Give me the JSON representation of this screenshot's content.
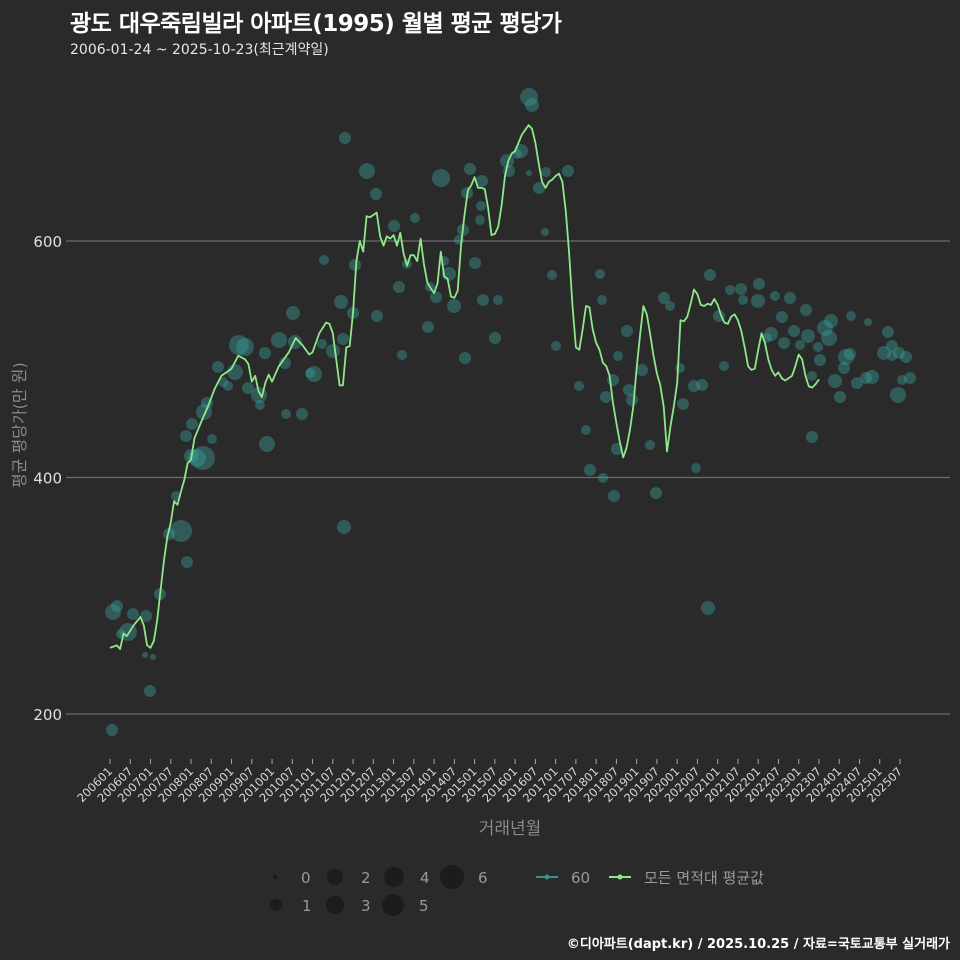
{
  "header": {
    "title": "광도 대우죽림빌라 아파트(1995) 월별 평균 평당가",
    "subtitle": "2006-01-24 ~ 2025-10-23(최근계약일)"
  },
  "axes": {
    "ylabel": "평균 평당가(만 원)",
    "xlabel": "거래년월"
  },
  "legend": {
    "size_items": [
      "0",
      "1",
      "2",
      "3",
      "4",
      "5",
      "6"
    ],
    "series_items": [
      {
        "label": "60",
        "color": "#3a8f8f"
      },
      {
        "label": "모든 면적대 평균값",
        "color": "#8ee88a"
      }
    ]
  },
  "footer": {
    "credit": "©디아파트(dapt.kr) / 2025.10.25 / 자료=국토교통부 실거래가"
  },
  "colors": {
    "background": "#2a2a2b",
    "grid": "#6a6a6a",
    "bubble": "#3aa5a0",
    "line": "#8ee88a"
  },
  "chart_data": {
    "type": "line",
    "title": "광도 대우죽림빌라 아파트(1995) 월별 평균 평당가",
    "subtitle": "2006-01-24 ~ 2025-10-23(최근계약일)",
    "xlabel": "거래년월",
    "ylabel": "평균 평당가(만 원)",
    "ylim": [
      160,
      720
    ],
    "yticks": [
      200,
      400,
      600
    ],
    "grid": true,
    "legend_position": "bottom",
    "categories": [
      "200601",
      "200607",
      "200701",
      "200707",
      "200801",
      "200807",
      "200901",
      "200907",
      "201001",
      "201007",
      "201101",
      "201107",
      "201201",
      "201207",
      "201301",
      "201307",
      "201401",
      "201407",
      "201501",
      "201507",
      "201601",
      "201607",
      "201701",
      "201707",
      "201801",
      "201807",
      "201901",
      "201907",
      "202001",
      "202007",
      "202101",
      "202107",
      "202201",
      "202207",
      "202301",
      "202307",
      "202401",
      "202407",
      "202501",
      "202507"
    ],
    "series": [
      {
        "name": "모든 면적대 평균값",
        "points": [
          [
            "200601",
            256
          ],
          [
            "200603",
            258
          ],
          [
            "200604",
            255
          ],
          [
            "200605",
            268
          ],
          [
            "200606",
            266
          ],
          [
            "200608",
            275
          ],
          [
            "200610",
            282
          ],
          [
            "200611",
            275
          ],
          [
            "200612",
            258
          ],
          [
            "200701",
            256
          ],
          [
            "200702",
            262
          ],
          [
            "200703",
            280
          ],
          [
            "200704",
            305
          ],
          [
            "200705",
            330
          ],
          [
            "200706",
            350
          ],
          [
            "200707",
            362
          ],
          [
            "200708",
            380
          ],
          [
            "200709",
            377
          ],
          [
            "200710",
            388
          ],
          [
            "200711",
            398
          ],
          [
            "200712",
            412
          ],
          [
            "200801",
            415
          ],
          [
            "200802",
            433
          ],
          [
            "200803",
            440
          ],
          [
            "200804",
            447
          ],
          [
            "200806",
            460
          ],
          [
            "200808",
            475
          ],
          [
            "200810",
            486
          ],
          [
            "200812",
            490
          ],
          [
            "200901",
            492
          ],
          [
            "200903",
            503
          ],
          [
            "200905",
            500
          ],
          [
            "200906",
            496
          ],
          [
            "200907",
            481
          ],
          [
            "200908",
            486
          ],
          [
            "200909",
            473
          ],
          [
            "200910",
            468
          ],
          [
            "200911",
            480
          ],
          [
            "200912",
            487
          ],
          [
            "201001",
            481
          ],
          [
            "201003",
            494
          ],
          [
            "201006",
            506
          ],
          [
            "201008",
            518
          ],
          [
            "201010",
            512
          ],
          [
            "201012",
            504
          ],
          [
            "201101",
            506
          ],
          [
            "201103",
            522
          ],
          [
            "201105",
            531
          ],
          [
            "201106",
            530
          ],
          [
            "201107",
            522
          ],
          [
            "201108",
            500
          ],
          [
            "201109",
            478
          ],
          [
            "201110",
            478
          ],
          [
            "201111",
            510
          ],
          [
            "201112",
            511
          ],
          [
            "201201",
            540
          ],
          [
            "201202",
            583
          ],
          [
            "201203",
            600
          ],
          [
            "201204",
            591
          ],
          [
            "201205",
            621
          ],
          [
            "201206",
            620
          ],
          [
            "201207",
            622
          ],
          [
            "201208",
            624
          ],
          [
            "201209",
            604
          ],
          [
            "201210",
            596
          ],
          [
            "201211",
            604
          ],
          [
            "201212",
            602
          ],
          [
            "201301",
            605
          ],
          [
            "201302",
            596
          ],
          [
            "201303",
            607
          ],
          [
            "201304",
            589
          ],
          [
            "201305",
            579
          ],
          [
            "201306",
            588
          ],
          [
            "201307",
            588
          ],
          [
            "201308",
            583
          ],
          [
            "201309",
            602
          ],
          [
            "201310",
            580
          ],
          [
            "201311",
            565
          ],
          [
            "201312",
            560
          ],
          [
            "201401",
            556
          ],
          [
            "201402",
            564
          ],
          [
            "201403",
            591
          ],
          [
            "201404",
            570
          ],
          [
            "201405",
            568
          ],
          [
            "201406",
            553
          ],
          [
            "201407",
            552
          ],
          [
            "201408",
            558
          ],
          [
            "201409",
            597
          ],
          [
            "201410",
            622
          ],
          [
            "201411",
            643
          ],
          [
            "201412",
            647
          ],
          [
            "201501",
            654
          ],
          [
            "201502",
            645
          ],
          [
            "201503",
            645
          ],
          [
            "201504",
            644
          ],
          [
            "201505",
            628
          ],
          [
            "201506",
            605
          ],
          [
            "201507",
            606
          ],
          [
            "201508",
            612
          ],
          [
            "201509",
            630
          ],
          [
            "201510",
            655
          ],
          [
            "201511",
            668
          ],
          [
            "201512",
            674
          ],
          [
            "201601",
            676
          ],
          [
            "201603",
            690
          ],
          [
            "201605",
            698
          ],
          [
            "201606",
            695
          ],
          [
            "201607",
            683
          ],
          [
            "201608",
            665
          ],
          [
            "201609",
            650
          ],
          [
            "201610",
            645
          ],
          [
            "201611",
            650
          ],
          [
            "201612",
            652
          ],
          [
            "201701",
            655
          ],
          [
            "201702",
            657
          ],
          [
            "201703",
            650
          ],
          [
            "201704",
            625
          ],
          [
            "201705",
            590
          ],
          [
            "201706",
            545
          ],
          [
            "201707",
            510
          ],
          [
            "201708",
            508
          ],
          [
            "201709",
            525
          ],
          [
            "201710",
            545
          ],
          [
            "201711",
            544
          ],
          [
            "201712",
            525
          ],
          [
            "201801",
            514
          ],
          [
            "201802",
            508
          ],
          [
            "201803",
            497
          ],
          [
            "201804",
            494
          ],
          [
            "201805",
            486
          ],
          [
            "201806",
            463
          ],
          [
            "201807",
            446
          ],
          [
            "201808",
            430
          ],
          [
            "201809",
            417
          ],
          [
            "201810",
            425
          ],
          [
            "201811",
            440
          ],
          [
            "201812",
            460
          ],
          [
            "201901",
            493
          ],
          [
            "201902",
            520
          ],
          [
            "201903",
            545
          ],
          [
            "201904",
            538
          ],
          [
            "201905",
            521
          ],
          [
            "201906",
            503
          ],
          [
            "201907",
            488
          ],
          [
            "201908",
            478
          ],
          [
            "201909",
            460
          ],
          [
            "201910",
            422
          ],
          [
            "201911",
            443
          ],
          [
            "201912",
            460
          ],
          [
            "202001",
            480
          ],
          [
            "202002",
            533
          ],
          [
            "202003",
            532
          ],
          [
            "202004",
            536
          ],
          [
            "202005",
            547
          ],
          [
            "202006",
            559
          ],
          [
            "202007",
            555
          ],
          [
            "202008",
            546
          ],
          [
            "202009",
            545
          ],
          [
            "202010",
            547
          ],
          [
            "202011",
            546
          ],
          [
            "202012",
            551
          ],
          [
            "202101",
            546
          ],
          [
            "202102",
            537
          ],
          [
            "202103",
            531
          ],
          [
            "202104",
            530
          ],
          [
            "202105",
            536
          ],
          [
            "202106",
            538
          ],
          [
            "202107",
            533
          ],
          [
            "202108",
            524
          ],
          [
            "202109",
            510
          ],
          [
            "202110",
            494
          ],
          [
            "202111",
            491
          ],
          [
            "202112",
            492
          ],
          [
            "202201",
            508
          ],
          [
            "202202",
            522
          ],
          [
            "202203",
            514
          ],
          [
            "202204",
            500
          ],
          [
            "202205",
            491
          ],
          [
            "202206",
            486
          ],
          [
            "202207",
            489
          ],
          [
            "202208",
            484
          ],
          [
            "202209",
            482
          ],
          [
            "202210",
            484
          ],
          [
            "202211",
            486
          ],
          [
            "202212",
            494
          ],
          [
            "202301",
            504
          ],
          [
            "202302",
            500
          ],
          [
            "202303",
            486
          ],
          [
            "202304",
            477
          ],
          [
            "202305",
            476
          ],
          [
            "202306",
            479
          ],
          [
            "202307",
            483
          ]
        ]
      }
    ],
    "bubbles_note": "Teal semi-transparent bubbles = monthly transactions for 60㎡ area, size = number of transactions (0–6)"
  }
}
